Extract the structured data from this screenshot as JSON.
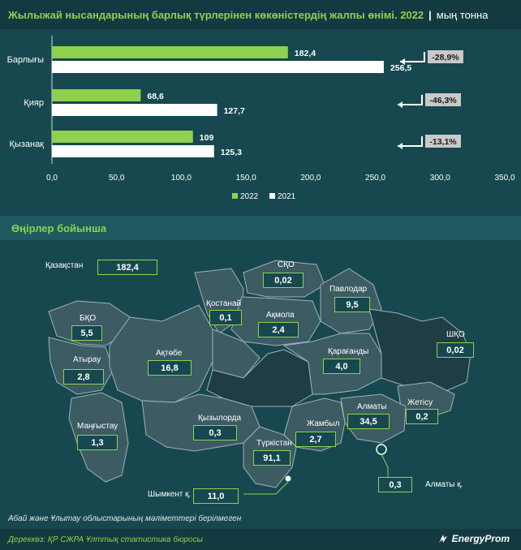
{
  "header": {
    "title": "Жылыжай нысандарының барлық түрлерінен көкөністердің жалпы өнімі. 2022",
    "separator": "|",
    "unit": "мың тонна"
  },
  "chart_data": {
    "type": "bar",
    "orientation": "horizontal",
    "categories": [
      "Барлығы",
      "Қияр",
      "Қызанақ"
    ],
    "series": [
      {
        "name": "2022",
        "values": [
          182.4,
          68.6,
          109
        ],
        "labels": [
          "182,4",
          "68,6",
          "109"
        ],
        "color": "#8fd14f"
      },
      {
        "name": "2021",
        "values": [
          256.5,
          127.7,
          125.3
        ],
        "labels": [
          "256,5",
          "127,7",
          "125,3"
        ],
        "color": "#ffffff"
      }
    ],
    "changes": [
      "-28,9%",
      "-46,3%",
      "-13,1%"
    ],
    "xlim": [
      0,
      350
    ],
    "xticks": [
      "0,0",
      "50,0",
      "100,0",
      "150,0",
      "200,0",
      "250,0",
      "300,0",
      "350,0"
    ],
    "legend_position": "bottom",
    "grid": false
  },
  "section": {
    "title": "Өңірлер бойынша"
  },
  "regions": [
    {
      "name": "Қазақстан",
      "value": "182,4"
    },
    {
      "name": "СҚО",
      "value": "0,02"
    },
    {
      "name": "Павлодар",
      "value": "9,5"
    },
    {
      "name": "Қостанай",
      "value": "0,1"
    },
    {
      "name": "Ақмола",
      "value": "2,4"
    },
    {
      "name": "БҚО",
      "value": "5,5"
    },
    {
      "name": "ШҚО",
      "value": "0,02"
    },
    {
      "name": "Атырау",
      "value": "2,8"
    },
    {
      "name": "Ақтөбе",
      "value": "16,8"
    },
    {
      "name": "Қарағанды",
      "value": "4,0"
    },
    {
      "name": "Жетісу",
      "value": "0,2"
    },
    {
      "name": "Алматы",
      "value": "34,5"
    },
    {
      "name": "Маңғыстау",
      "value": "1,3"
    },
    {
      "name": "Қызылорда",
      "value": "0,3"
    },
    {
      "name": "Жамбыл",
      "value": "2,7"
    },
    {
      "name": "Түркістан",
      "value": "91,1"
    },
    {
      "name": "Шымкент қ.",
      "value": "11,0"
    },
    {
      "name": "Алматы қ.",
      "value": "0,3"
    }
  ],
  "map": {
    "fill": "#3c5b63",
    "highlight": "#1e3d45",
    "stroke": "#9fb3b7"
  },
  "footnote": "Абай және Ұлытау облыстарының мәліметтері берілмеген",
  "source": "Дереккөз: ҚР СЖРА Ұлттық статистика бюросы",
  "brand": "EnergyProm"
}
